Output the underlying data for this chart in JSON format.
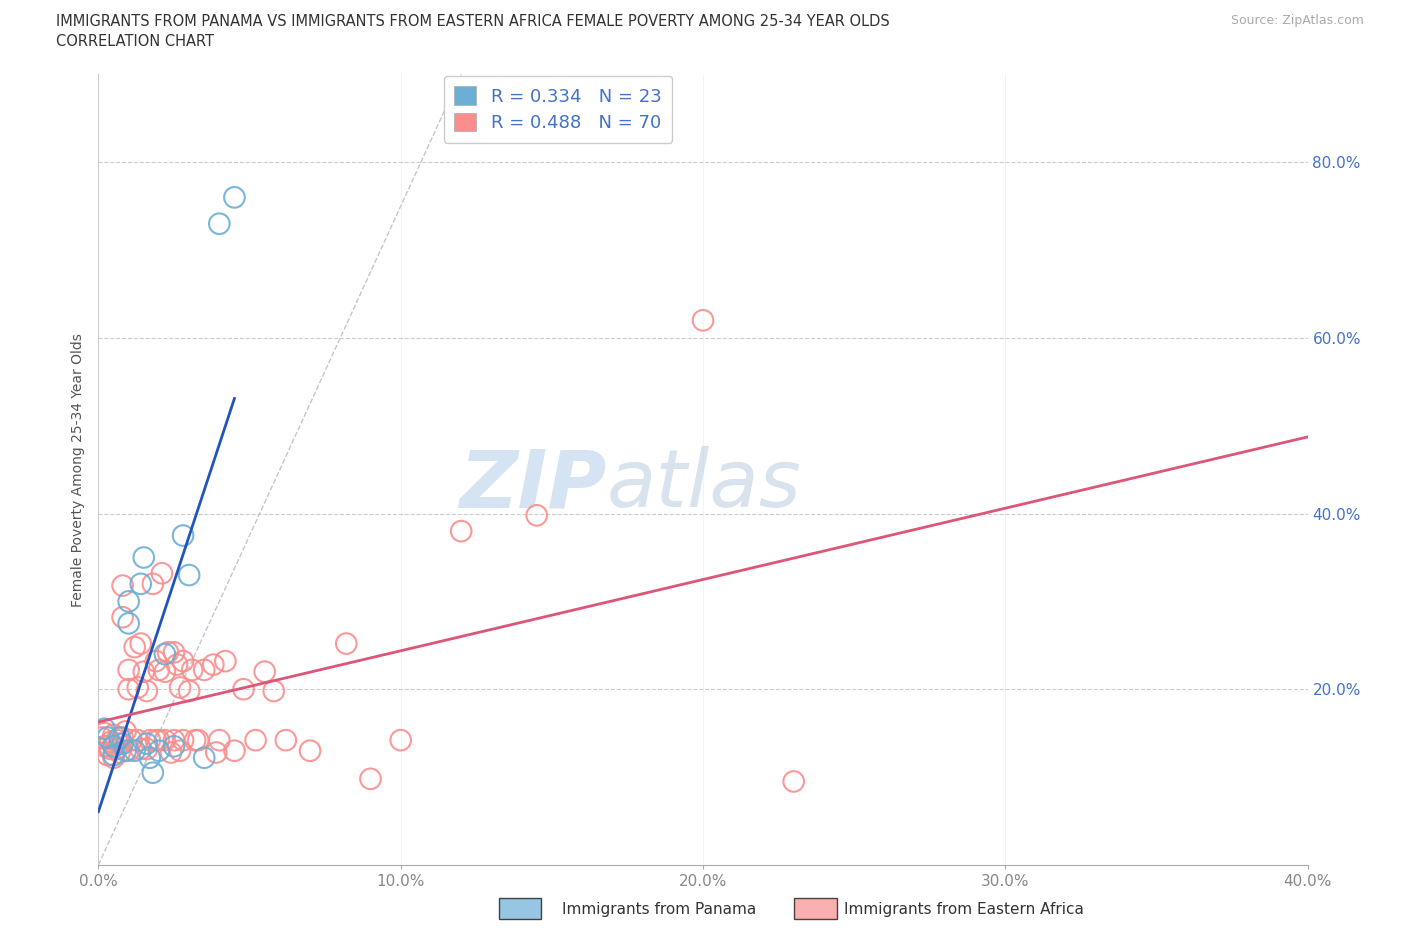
{
  "title_line1": "IMMIGRANTS FROM PANAMA VS IMMIGRANTS FROM EASTERN AFRICA FEMALE POVERTY AMONG 25-34 YEAR OLDS",
  "title_line2": "CORRELATION CHART",
  "source_text": "Source: ZipAtlas.com",
  "ylabel": "Female Poverty Among 25-34 Year Olds",
  "xlim": [
    0.0,
    0.4
  ],
  "ylim": [
    0.0,
    0.9
  ],
  "x_ticks": [
    0.0,
    0.1,
    0.2,
    0.3,
    0.4
  ],
  "x_tick_labels": [
    "0.0%",
    "10.0%",
    "20.0%",
    "30.0%",
    "40.0%"
  ],
  "y_ticks": [
    0.0,
    0.2,
    0.4,
    0.6,
    0.8
  ],
  "y_tick_labels": [
    "",
    "20.0%",
    "40.0%",
    "60.0%",
    "80.0%"
  ],
  "r_panama": 0.334,
  "n_panama": 23,
  "r_eastern_africa": 0.488,
  "n_eastern_africa": 70,
  "panama_color": "#6baed6",
  "eastern_africa_color": "#fc8d8d",
  "panama_scatter": [
    [
      0.002,
      0.155
    ],
    [
      0.003,
      0.145
    ],
    [
      0.005,
      0.135
    ],
    [
      0.005,
      0.125
    ],
    [
      0.007,
      0.145
    ],
    [
      0.008,
      0.138
    ],
    [
      0.009,
      0.13
    ],
    [
      0.01,
      0.3
    ],
    [
      0.01,
      0.275
    ],
    [
      0.012,
      0.13
    ],
    [
      0.014,
      0.32
    ],
    [
      0.015,
      0.35
    ],
    [
      0.016,
      0.138
    ],
    [
      0.017,
      0.122
    ],
    [
      0.018,
      0.105
    ],
    [
      0.02,
      0.13
    ],
    [
      0.022,
      0.24
    ],
    [
      0.025,
      0.135
    ],
    [
      0.028,
      0.375
    ],
    [
      0.03,
      0.33
    ],
    [
      0.035,
      0.122
    ],
    [
      0.04,
      0.73
    ],
    [
      0.045,
      0.76
    ]
  ],
  "eastern_africa_scatter": [
    [
      0.001,
      0.145
    ],
    [
      0.002,
      0.135
    ],
    [
      0.002,
      0.15
    ],
    [
      0.003,
      0.125
    ],
    [
      0.003,
      0.135
    ],
    [
      0.004,
      0.14
    ],
    [
      0.004,
      0.132
    ],
    [
      0.005,
      0.122
    ],
    [
      0.005,
      0.148
    ],
    [
      0.006,
      0.142
    ],
    [
      0.006,
      0.132
    ],
    [
      0.007,
      0.138
    ],
    [
      0.007,
      0.128
    ],
    [
      0.008,
      0.145
    ],
    [
      0.008,
      0.318
    ],
    [
      0.008,
      0.282
    ],
    [
      0.009,
      0.152
    ],
    [
      0.01,
      0.2
    ],
    [
      0.01,
      0.222
    ],
    [
      0.01,
      0.13
    ],
    [
      0.011,
      0.142
    ],
    [
      0.012,
      0.248
    ],
    [
      0.013,
      0.202
    ],
    [
      0.013,
      0.142
    ],
    [
      0.014,
      0.252
    ],
    [
      0.014,
      0.132
    ],
    [
      0.015,
      0.22
    ],
    [
      0.016,
      0.198
    ],
    [
      0.016,
      0.132
    ],
    [
      0.017,
      0.142
    ],
    [
      0.018,
      0.32
    ],
    [
      0.019,
      0.142
    ],
    [
      0.019,
      0.232
    ],
    [
      0.02,
      0.222
    ],
    [
      0.02,
      0.142
    ],
    [
      0.021,
      0.332
    ],
    [
      0.022,
      0.22
    ],
    [
      0.022,
      0.142
    ],
    [
      0.023,
      0.242
    ],
    [
      0.024,
      0.128
    ],
    [
      0.025,
      0.242
    ],
    [
      0.025,
      0.142
    ],
    [
      0.026,
      0.228
    ],
    [
      0.027,
      0.202
    ],
    [
      0.027,
      0.13
    ],
    [
      0.028,
      0.232
    ],
    [
      0.028,
      0.142
    ],
    [
      0.03,
      0.198
    ],
    [
      0.031,
      0.222
    ],
    [
      0.032,
      0.142
    ],
    [
      0.033,
      0.142
    ],
    [
      0.035,
      0.222
    ],
    [
      0.038,
      0.228
    ],
    [
      0.039,
      0.128
    ],
    [
      0.04,
      0.142
    ],
    [
      0.042,
      0.232
    ],
    [
      0.045,
      0.13
    ],
    [
      0.048,
      0.2
    ],
    [
      0.052,
      0.142
    ],
    [
      0.055,
      0.22
    ],
    [
      0.058,
      0.198
    ],
    [
      0.062,
      0.142
    ],
    [
      0.07,
      0.13
    ],
    [
      0.082,
      0.252
    ],
    [
      0.09,
      0.098
    ],
    [
      0.1,
      0.142
    ],
    [
      0.12,
      0.38
    ],
    [
      0.145,
      0.398
    ],
    [
      0.2,
      0.62
    ],
    [
      0.23,
      0.095
    ]
  ],
  "watermark_zip": "ZIP",
  "watermark_atlas": "atlas",
  "background_color": "#ffffff",
  "grid_color": "#cccccc",
  "diag_line_color": "#b0b8c8",
  "panama_line_color": "#2255bb",
  "eastern_africa_line_color": "#dd5577",
  "legend_label_color": "#4472c4",
  "ytick_color": "#4472c4",
  "xtick_color": "#888888"
}
